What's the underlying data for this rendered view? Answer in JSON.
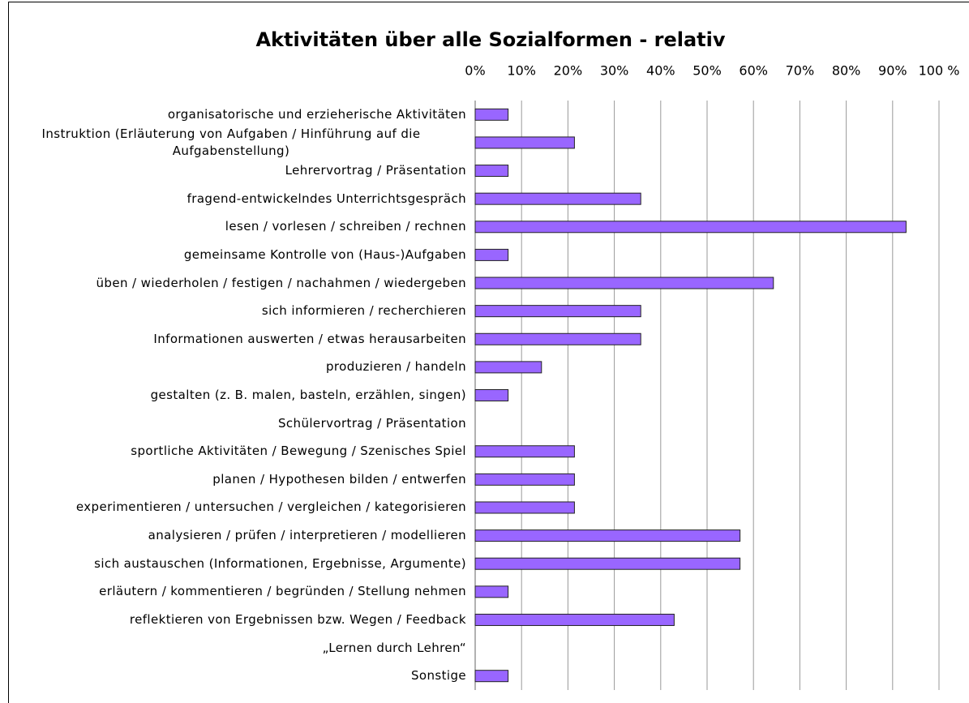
{
  "chart_data": {
    "type": "bar",
    "orientation": "horizontal",
    "title": "Aktivitäten über alle Sozialformen - relativ",
    "categories": [
      "organisatorische und erzieherische Aktivitäten",
      "Instruktion (Erläuterung von Aufgaben / Hinführung auf die Aufgabenstellung)",
      "Lehrervortrag / Präsentation",
      "fragend-entwickelndes Unterrichtsgespräch",
      "lesen / vorlesen / schreiben / rechnen",
      "gemeinsame Kontrolle von (Haus-)Aufgaben",
      "üben / wiederholen / festigen / nachahmen / wiedergeben",
      "sich informieren / recherchieren",
      "Informationen auswerten / etwas herausarbeiten",
      "produzieren / handeln",
      "gestalten (z. B.  malen, basteln, erzählen, singen)",
      "Schülervortrag / Präsentation",
      "sportliche Aktivitäten / Bewegung / Szenisches Spiel",
      "planen / Hypothesen bilden / entwerfen",
      "experimentieren / untersuchen / vergleichen / kategorisieren",
      "analysieren / prüfen / interpretieren / modellieren",
      "sich austauschen (Informationen, Ergebnisse, Argumente)",
      "erläutern / kommentieren / begründen / Stellung nehmen",
      "reflektieren von Ergebnissen bzw. Wegen / Feedback",
      "„Lernen durch Lehren“",
      "Sonstige"
    ],
    "values": [
      7.1,
      21.4,
      7.1,
      35.7,
      92.9,
      7.1,
      64.3,
      35.7,
      35.7,
      14.3,
      7.1,
      0,
      21.4,
      21.4,
      21.4,
      57.1,
      57.1,
      7.1,
      42.9,
      0,
      7.1
    ],
    "color": "#9966ff",
    "xlim": [
      0,
      100
    ],
    "xticks": [
      {
        "value": 0,
        "label": "0%"
      },
      {
        "value": 10,
        "label": "10%"
      },
      {
        "value": 20,
        "label": "20%"
      },
      {
        "value": 30,
        "label": "30%"
      },
      {
        "value": 40,
        "label": "40%"
      },
      {
        "value": 50,
        "label": "50%"
      },
      {
        "value": 60,
        "label": "60%"
      },
      {
        "value": 70,
        "label": "70%"
      },
      {
        "value": 80,
        "label": "80%"
      },
      {
        "value": 90,
        "label": "90%"
      },
      {
        "value": 100,
        "label": "100 %"
      }
    ],
    "grid": true
  }
}
